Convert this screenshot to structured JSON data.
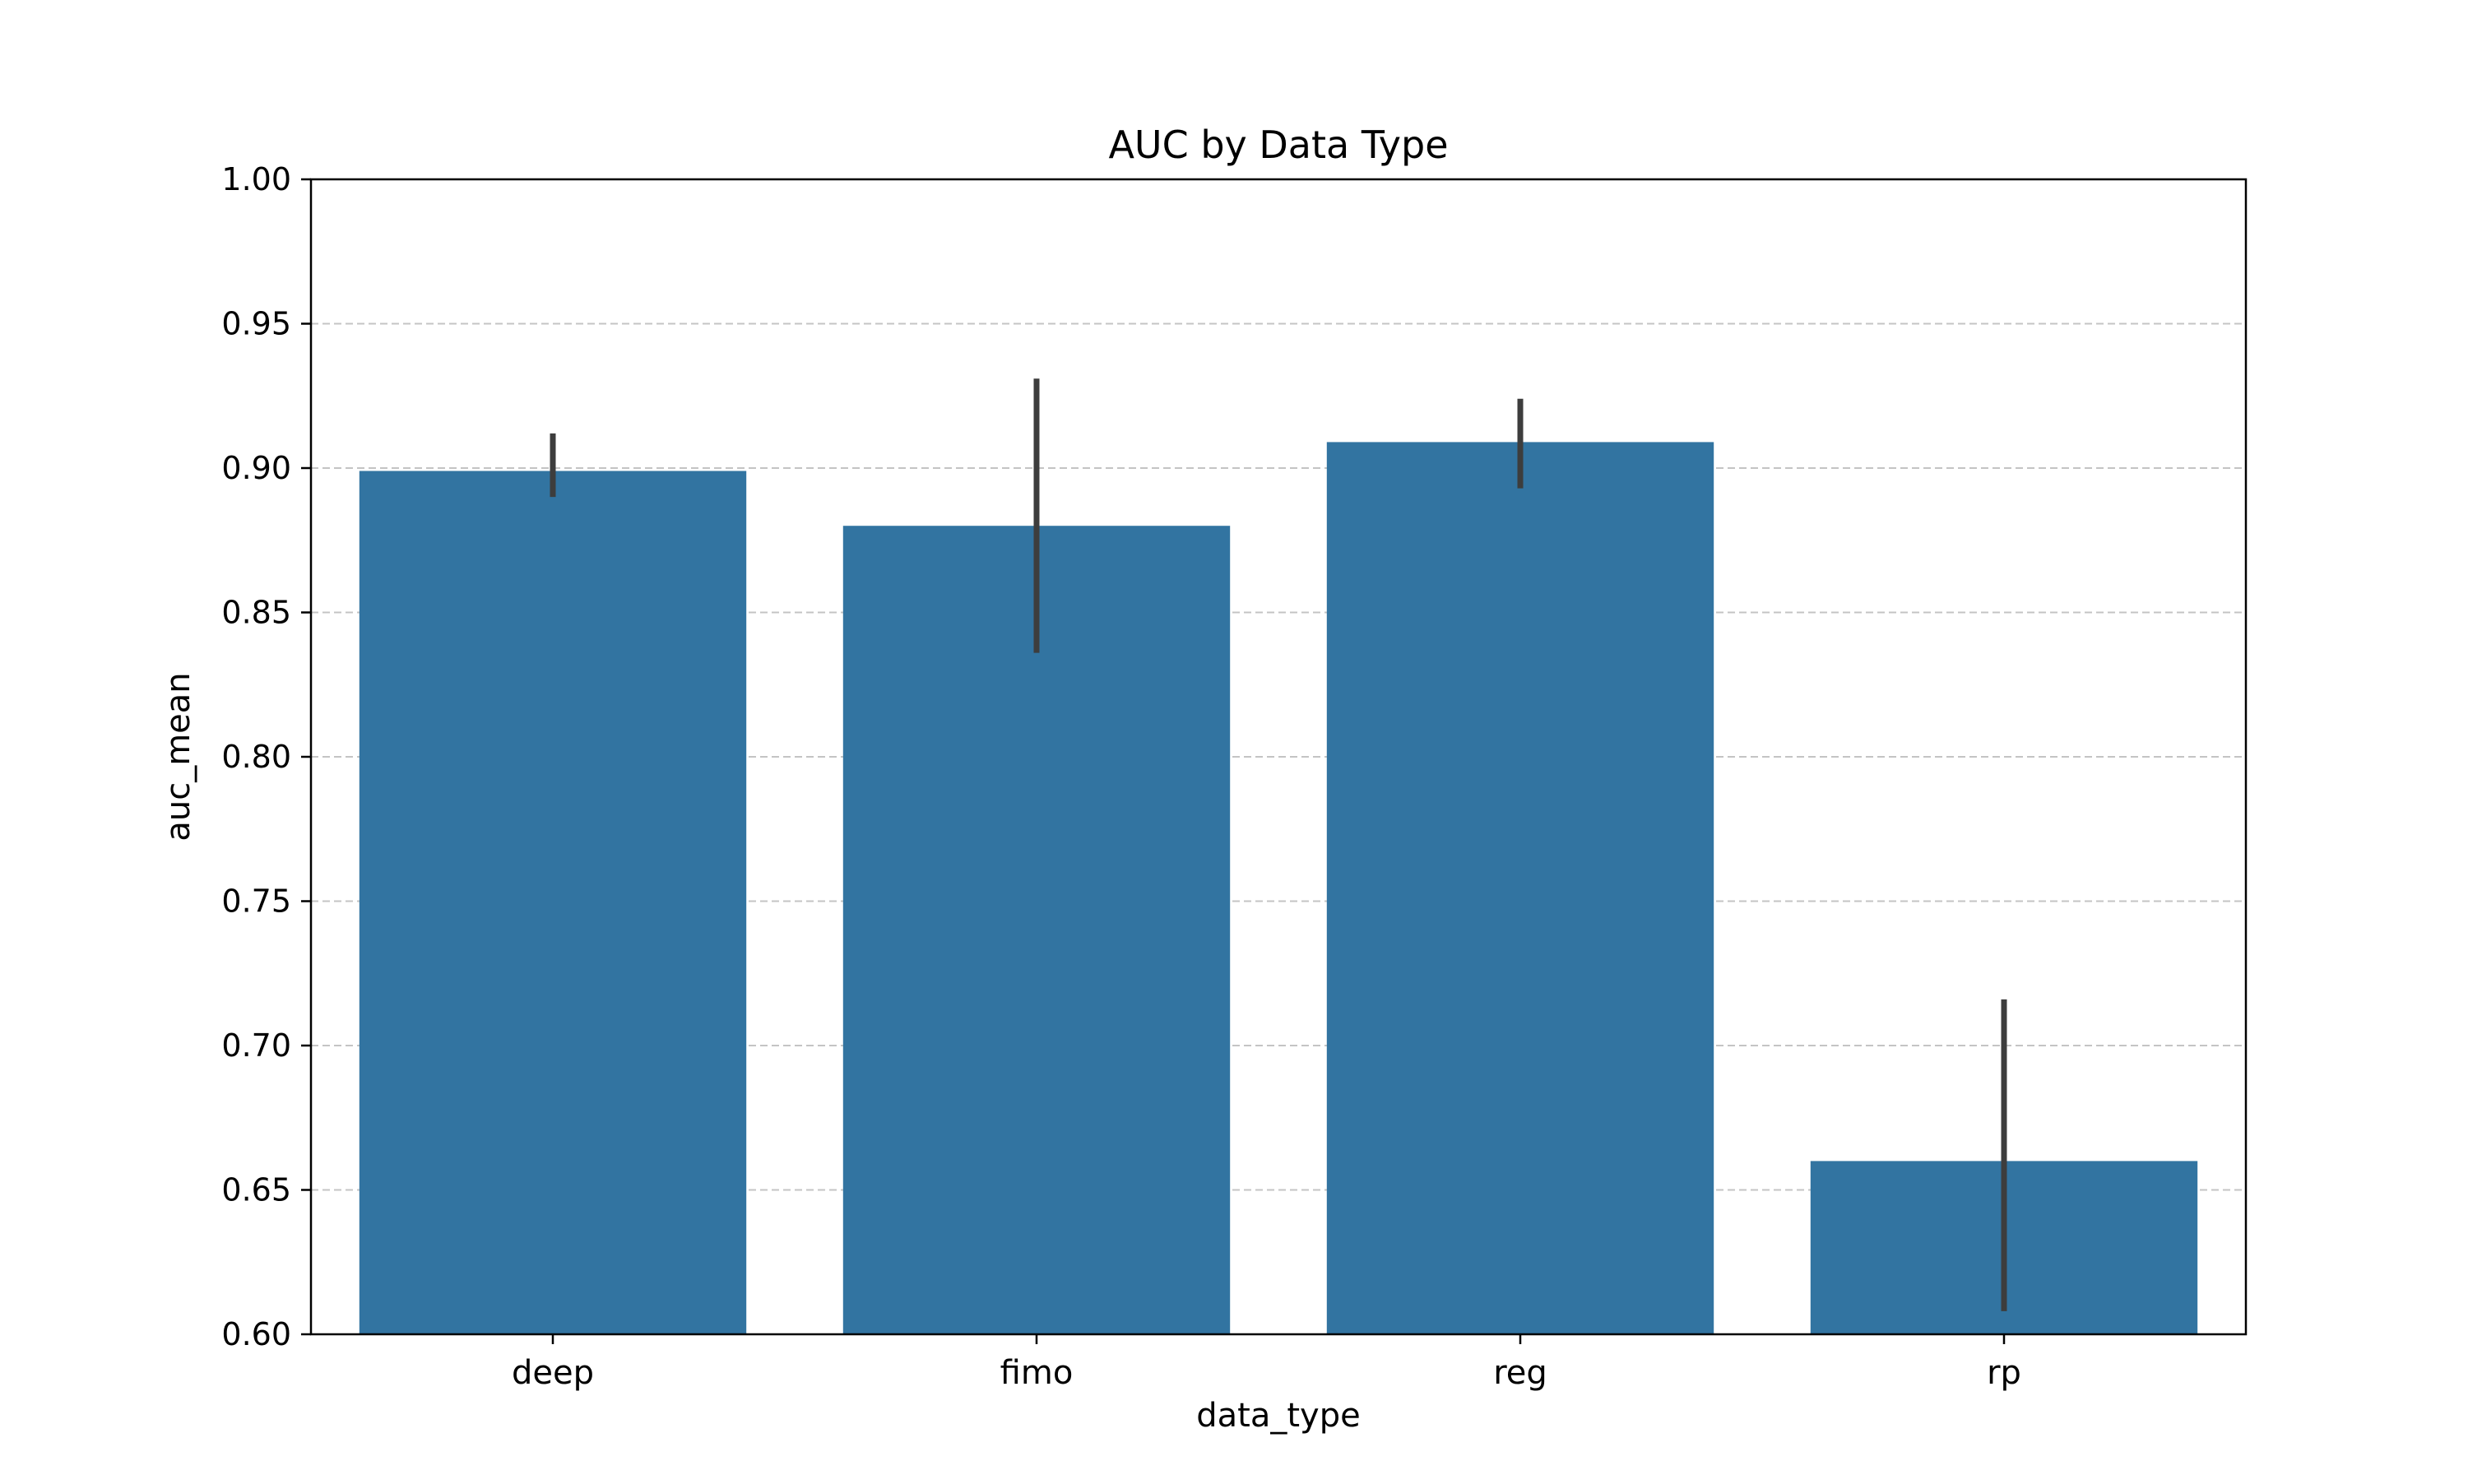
{
  "chart_data": {
    "type": "bar",
    "title": "AUC by Data Type",
    "xlabel": "data_type",
    "ylabel": "auc_mean",
    "categories": [
      "deep",
      "fimo",
      "reg",
      "rp"
    ],
    "values": [
      0.899,
      0.88,
      0.909,
      0.66
    ],
    "error_bars": [
      {
        "low": 0.89,
        "high": 0.912
      },
      {
        "low": 0.836,
        "high": 0.931
      },
      {
        "low": 0.893,
        "high": 0.924
      },
      {
        "low": 0.608,
        "high": 0.716
      }
    ],
    "ylim": [
      0.6,
      1.0
    ],
    "yticks": [
      "0.60",
      "0.65",
      "0.70",
      "0.75",
      "0.80",
      "0.85",
      "0.90",
      "0.95",
      "1.00"
    ],
    "grid": "y-dashed",
    "legend": "none",
    "colors": {
      "bar": "#3274a1",
      "error_bar": "#3d3d3d",
      "grid": "#c4c4c4",
      "axis": "#000000"
    }
  }
}
